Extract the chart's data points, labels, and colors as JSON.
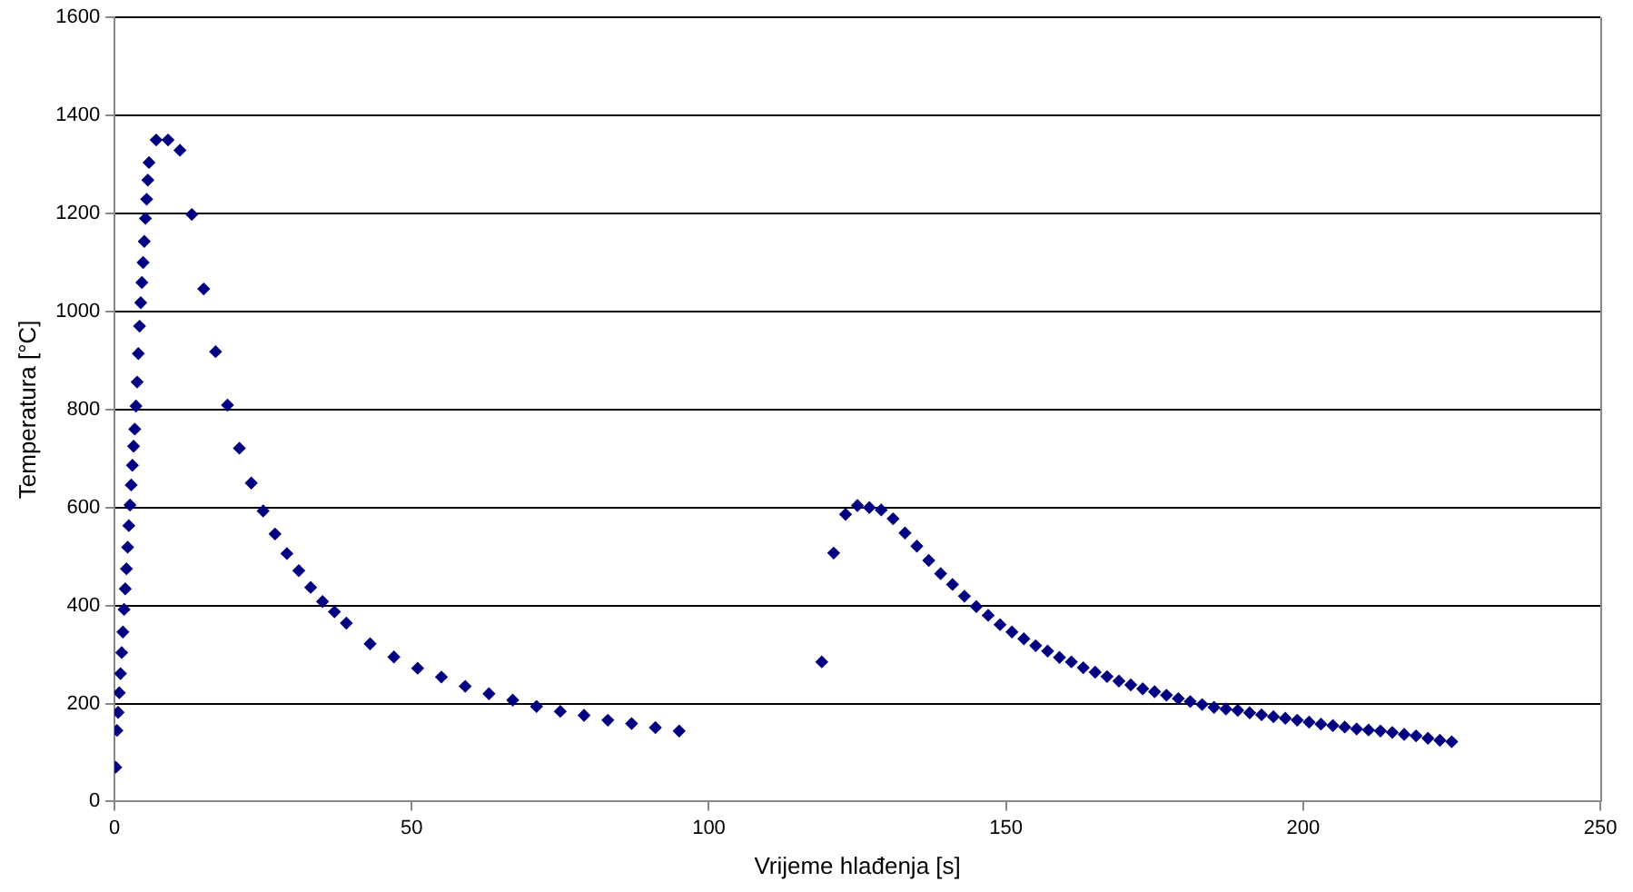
{
  "chart_data": {
    "type": "scatter",
    "xlabel": "Vrijeme hlađenja [s]",
    "ylabel": "Temperatura [°C]",
    "xlim": [
      0,
      250
    ],
    "xticks": [
      0,
      50,
      100,
      150,
      200,
      250
    ],
    "ylim": [
      0,
      1600
    ],
    "yticks": [
      0,
      200,
      400,
      600,
      800,
      1000,
      1200,
      1400,
      1600
    ],
    "grid": "y",
    "legend": false,
    "marker": "diamond",
    "series": [
      {
        "color": "#000080",
        "x": [
          0.2,
          0.4,
          0.6,
          0.8,
          1.0,
          1.2,
          1.4,
          1.6,
          1.8,
          2.0,
          2.2,
          2.4,
          2.6,
          2.8,
          3.0,
          3.2,
          3.4,
          3.6,
          3.8,
          4.0,
          4.2,
          4.4,
          4.6,
          4.8,
          5.0,
          5.2,
          5.4,
          5.6,
          5.8,
          7,
          9,
          11,
          13,
          15,
          17,
          19,
          21,
          23,
          25,
          27,
          29,
          31,
          33,
          35,
          37,
          39,
          43,
          47,
          51,
          55,
          59,
          63,
          67,
          71,
          75,
          79,
          83,
          87,
          91,
          95,
          119,
          121,
          123,
          125,
          127,
          129,
          131,
          133,
          135,
          137,
          139,
          141,
          143,
          145,
          147,
          149,
          151,
          153,
          155,
          157,
          159,
          161,
          163,
          165,
          167,
          169,
          171,
          173,
          175,
          177,
          179,
          181,
          183,
          185,
          187,
          189,
          191,
          193,
          195,
          197,
          199,
          201,
          203,
          205,
          207,
          209,
          211,
          213,
          215,
          217,
          219,
          221,
          223,
          225
        ],
        "values": [
          70,
          145,
          182,
          222,
          261,
          304,
          346,
          392,
          434,
          475,
          519,
          563,
          605,
          646,
          686,
          725,
          760,
          807,
          856,
          914,
          970,
          1018,
          1059,
          1100,
          1143,
          1190,
          1229,
          1268,
          1304,
          1350,
          1350,
          1329,
          1198,
          1046,
          918,
          809,
          721,
          650,
          593,
          546,
          506,
          471,
          437,
          408,
          387,
          364,
          322,
          295,
          272,
          254,
          235,
          220,
          207,
          194,
          184,
          176,
          166,
          159,
          151,
          144,
          285,
          507,
          586,
          604,
          600,
          595,
          577,
          548,
          521,
          492,
          465,
          443,
          419,
          398,
          380,
          361,
          346,
          332,
          318,
          307,
          294,
          285,
          273,
          264,
          255,
          246,
          238,
          230,
          224,
          217,
          210,
          204,
          198,
          192,
          189,
          186,
          181,
          177,
          173,
          170,
          166,
          162,
          158,
          155,
          152,
          148,
          146,
          144,
          141,
          137,
          134,
          129,
          125,
          122
        ]
      }
    ]
  }
}
